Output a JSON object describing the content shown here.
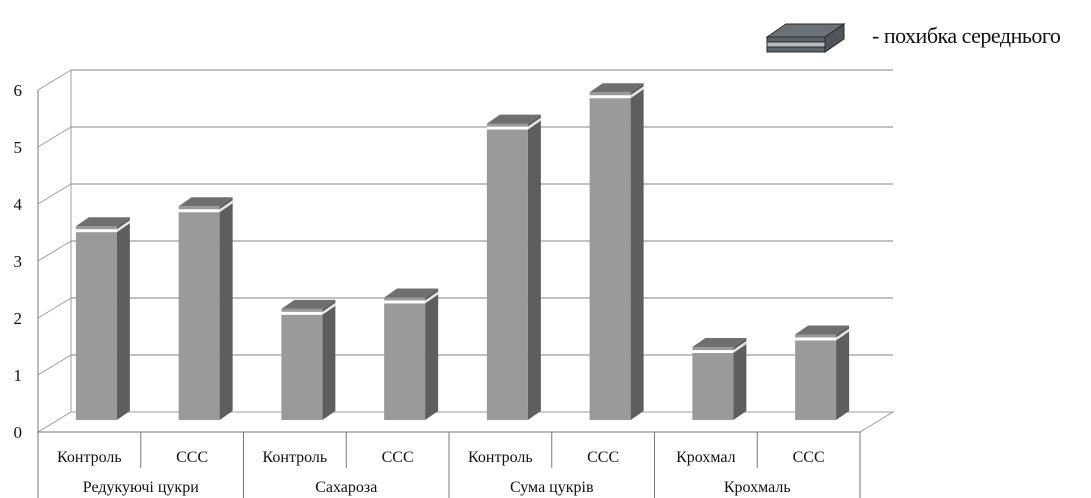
{
  "chart_data": {
    "type": "bar",
    "ylim": [
      0,
      6
    ],
    "yticks": [
      "0",
      "1",
      "2",
      "3",
      "4",
      "5",
      "6"
    ],
    "grid": true,
    "legend": {
      "label": "- похибка середнього",
      "placement": "top-right"
    },
    "groups": [
      {
        "name": "Редукуючі цукри",
        "categories": [
          "Контроль",
          "ССС"
        ],
        "values": [
          3.4,
          3.75
        ],
        "errors": [
          0.08,
          0.08
        ]
      },
      {
        "name": "Сахароза",
        "categories": [
          "Контроль",
          "ССС"
        ],
        "values": [
          1.95,
          2.15
        ],
        "errors": [
          0.08,
          0.08
        ]
      },
      {
        "name": "Сума цукрів",
        "categories": [
          "Контроль",
          "ССС"
        ],
        "values": [
          5.2,
          5.75
        ],
        "errors": [
          0.08,
          0.08
        ]
      },
      {
        "name": "Крохмаль",
        "categories": [
          "Крохмал",
          "ССС"
        ],
        "values": [
          1.28,
          1.5
        ],
        "errors": [
          0.08,
          0.08
        ]
      }
    ],
    "colors": {
      "bar_front": "#9a9a9a",
      "bar_side": "#5e5e5e",
      "bar_top": "#6f6f6f",
      "error_band": "#ffffff",
      "grid": "#9c9c9c"
    }
  }
}
